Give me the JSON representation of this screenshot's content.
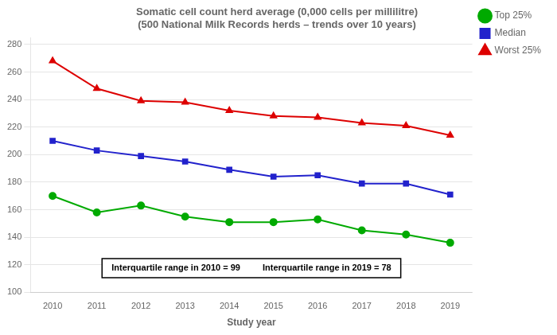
{
  "chart_data": {
    "type": "line",
    "title": "Somatic cell count herd average (0,000 cells per millilitre)",
    "subtitle": "(500 National Milk Records herds – trends over 10 years)",
    "x_label": "Study year",
    "x": [
      2010,
      2011,
      2012,
      2013,
      2014,
      2015,
      2016,
      2017,
      2018,
      2019
    ],
    "xlim": [
      2009.5,
      2019.5
    ],
    "xticks": [
      2010,
      2011,
      2012,
      2013,
      2014,
      2015,
      2016,
      2017,
      2018,
      2019
    ],
    "ylim": [
      100,
      285
    ],
    "yticks": [
      100,
      120,
      140,
      160,
      180,
      200,
      220,
      240,
      260,
      280
    ],
    "grid": "y",
    "legend": "right",
    "series": [
      {
        "name": "Worst 25%",
        "color": "#dd0000",
        "marker": "triangle",
        "values": [
          268,
          248,
          239,
          238,
          232,
          228,
          227,
          223,
          221,
          214
        ]
      },
      {
        "name": "Median",
        "color": "#2222cc",
        "marker": "square",
        "values": [
          210,
          203,
          199,
          195,
          189,
          184,
          185,
          179,
          179,
          171
        ]
      },
      {
        "name": "Top 25%",
        "color": "#00aa00",
        "marker": "circle",
        "values": [
          170,
          158,
          163,
          155,
          151,
          151,
          153,
          145,
          142,
          136
        ]
      }
    ],
    "annotations": [
      "Interquartile range in 2010 = 99",
      "Interquartile range in 2019 = 78"
    ]
  }
}
